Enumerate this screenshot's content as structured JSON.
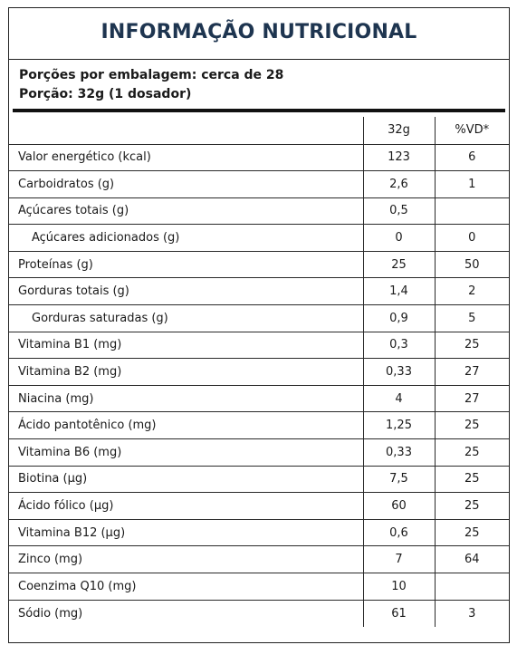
{
  "title": "INFORMAÇÃO NUTRICIONAL",
  "serving": {
    "per_package": "Porções por embalagem: cerca de 28",
    "portion": "Porção: 32g (1 dosador)"
  },
  "columns": {
    "amount": "32g",
    "dv": "%VD*"
  },
  "rows": [
    {
      "label": "Valor energético (kcal)",
      "amount": "123",
      "dv": "6"
    },
    {
      "label": "Carboidratos (g)",
      "amount": "2,6",
      "dv": "1"
    },
    {
      "label": "Açúcares totais (g)",
      "amount": "0,5",
      "dv": ""
    },
    {
      "label": "Açúcares adicionados (g)",
      "amount": "0",
      "dv": "0",
      "indent": true
    },
    {
      "label": "Proteínas (g)",
      "amount": "25",
      "dv": "50"
    },
    {
      "label": "Gorduras totais (g)",
      "amount": "1,4",
      "dv": "2"
    },
    {
      "label": "Gorduras saturadas (g)",
      "amount": "0,9",
      "dv": "5",
      "indent": true
    },
    {
      "label": "Vitamina B1 (mg)",
      "amount": "0,3",
      "dv": "25"
    },
    {
      "label": "Vitamina B2 (mg)",
      "amount": "0,33",
      "dv": "27"
    },
    {
      "label": "Niacina (mg)",
      "amount": "4",
      "dv": "27"
    },
    {
      "label": "Ácido pantotênico (mg)",
      "amount": "1,25",
      "dv": "25"
    },
    {
      "label": "Vitamina B6 (mg)",
      "amount": "0,33",
      "dv": "25"
    },
    {
      "label": "Biotina (µg)",
      "amount": "7,5",
      "dv": "25"
    },
    {
      "label": "Ácido fólico (µg)",
      "amount": "60",
      "dv": "25"
    },
    {
      "label": "Vitamina B12 (µg)",
      "amount": "0,6",
      "dv": "25"
    },
    {
      "label": "Zinco (mg)",
      "amount": "7",
      "dv": "64"
    },
    {
      "label": "Coenzima Q10 (mg)",
      "amount": "10",
      "dv": ""
    },
    {
      "label": "Sódio (mg)",
      "amount": "61",
      "dv": "3"
    }
  ]
}
